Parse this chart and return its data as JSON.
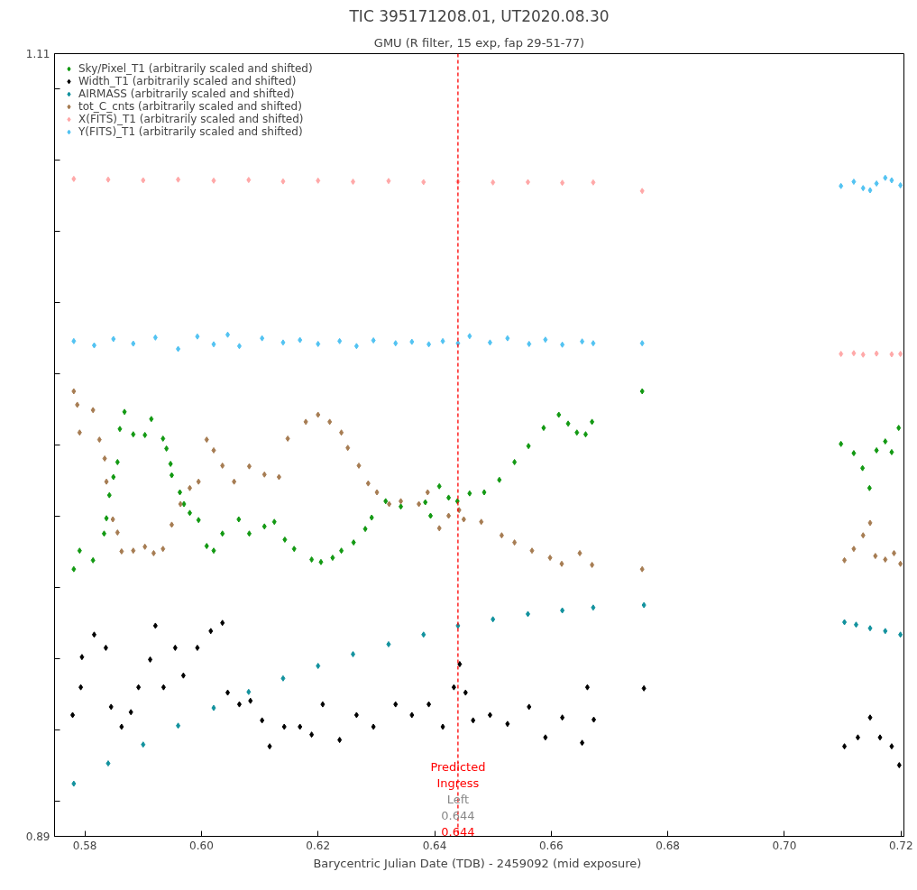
{
  "chart_data": {
    "type": "scatter",
    "title": "TIC 395171208.01, UT2020.08.30",
    "subtitle": "GMU (R filter, 15 exp, fap 29-51-77)",
    "xlabel": "Barycentric Julian Date (TDB) - 2459092 (mid  exposure)",
    "xlim": [
      0.5748,
      0.7205
    ],
    "ylim": [
      0.89,
      1.11
    ],
    "xticks": [
      {
        "value": 0.58,
        "label": "0.58"
      },
      {
        "value": 0.6,
        "label": "0.60"
      },
      {
        "value": 0.62,
        "label": "0.62"
      },
      {
        "value": 0.64,
        "label": "0.64"
      },
      {
        "value": 0.66,
        "label": "0.66"
      },
      {
        "value": 0.68,
        "label": "0.68"
      },
      {
        "value": 0.7,
        "label": "0.70"
      },
      {
        "value": 0.72,
        "label": "0.72"
      }
    ],
    "yticks": [
      0.89,
      {
        "value": 0.9,
        "label": null
      },
      {
        "value": 0.92,
        "label": null
      },
      {
        "value": 0.94,
        "label": null
      },
      {
        "value": 0.96,
        "label": null
      },
      {
        "value": 0.98,
        "label": null
      },
      {
        "value": 1.0,
        "label": null
      },
      {
        "value": 1.02,
        "label": null
      },
      {
        "value": 1.04,
        "label": null
      },
      {
        "value": 1.06,
        "label": null
      },
      {
        "value": 1.08,
        "label": null
      },
      {
        "value": 1.1,
        "label": null
      },
      1.11
    ],
    "grid": false,
    "legend": "top left",
    "marker": "diamond",
    "series": [
      {
        "name": "Sky/Pixel_T1 (arbitrarily scaled and shifted)",
        "color": "#129912",
        "x": [
          0.5781,
          0.5791,
          0.5814,
          0.5833,
          0.5837,
          0.5842,
          0.5849,
          0.5856,
          0.586,
          0.5868,
          0.5883,
          0.5903,
          0.5914,
          0.5934,
          0.594,
          0.5947,
          0.5949,
          0.5963,
          0.597,
          0.598,
          0.5995,
          0.6009,
          0.6021,
          0.6036,
          0.6064,
          0.6082,
          0.6108,
          0.6125,
          0.6143,
          0.6159,
          0.6189,
          0.6205,
          0.6225,
          0.624,
          0.6261,
          0.6281,
          0.6292,
          0.6316,
          0.6342,
          0.6384,
          0.6393,
          0.6408,
          0.6424,
          0.6439,
          0.646,
          0.6485,
          0.6511,
          0.6537,
          0.6561,
          0.6587,
          0.6613,
          0.6629,
          0.6644,
          0.6659,
          0.667,
          0.6756,
          0.7097,
          0.7119,
          0.7134,
          0.7146,
          0.7158,
          0.7173,
          0.7184,
          0.7196
        ],
        "values": [
          0.9651,
          0.9703,
          0.9676,
          0.9751,
          0.9794,
          0.9859,
          0.991,
          0.9952,
          1.0045,
          1.0093,
          1.003,
          1.0028,
          1.0073,
          1.0018,
          0.999,
          0.9947,
          0.9915,
          0.9867,
          0.9834,
          0.9809,
          0.9789,
          0.9716,
          0.9703,
          0.9751,
          0.9791,
          0.9751,
          0.9771,
          0.9784,
          0.9734,
          0.9708,
          0.9678,
          0.9671,
          0.9683,
          0.9703,
          0.9726,
          0.9764,
          0.9796,
          0.9842,
          0.9827,
          0.9839,
          0.9801,
          0.9884,
          0.9852,
          0.9842,
          0.9864,
          0.9867,
          0.9902,
          0.9952,
          0.9997,
          1.0048,
          1.0085,
          1.006,
          1.0035,
          1.003,
          1.0065,
          1.0151,
          1.0003,
          0.9977,
          0.9935,
          0.9879,
          0.9985,
          1.001,
          0.998,
          1.0048
        ]
      },
      {
        "name": "Width_T1 (arbitrarily scaled and shifted)",
        "color": "#000000",
        "x": [
          0.5779,
          0.5793,
          0.5795,
          0.5816,
          0.5836,
          0.5845,
          0.5863,
          0.5879,
          0.5892,
          0.5912,
          0.5921,
          0.5935,
          0.5955,
          0.5969,
          0.5993,
          0.6016,
          0.6036,
          0.6045,
          0.6065,
          0.6084,
          0.6104,
          0.6117,
          0.6142,
          0.6169,
          0.6189,
          0.6208,
          0.6237,
          0.6266,
          0.6295,
          0.6333,
          0.6361,
          0.639,
          0.6414,
          0.6433,
          0.6443,
          0.6453,
          0.6466,
          0.6495,
          0.6525,
          0.6562,
          0.659,
          0.6619,
          0.6653,
          0.6662,
          0.6673,
          0.6759,
          0.7103,
          0.7126,
          0.7147,
          0.7164,
          0.7184,
          0.7197
        ],
        "values": [
          0.9241,
          0.9319,
          0.9404,
          0.9467,
          0.943,
          0.9264,
          0.9208,
          0.9249,
          0.9319,
          0.9397,
          0.9492,
          0.9319,
          0.943,
          0.9352,
          0.943,
          0.9477,
          0.95,
          0.9304,
          0.9271,
          0.9281,
          0.9226,
          0.9153,
          0.9208,
          0.9208,
          0.9186,
          0.9271,
          0.9171,
          0.9241,
          0.9208,
          0.9271,
          0.9241,
          0.9271,
          0.9208,
          0.9319,
          0.9384,
          0.9304,
          0.9226,
          0.9241,
          0.9216,
          0.9264,
          0.9178,
          0.9234,
          0.9163,
          0.9319,
          0.9228,
          0.9316,
          0.9153,
          0.9178,
          0.9234,
          0.9178,
          0.9153,
          0.91
        ]
      },
      {
        "name": "AIRMASS (arbitrarily scaled and shifted)",
        "color": "#12929e",
        "x": [
          0.5781,
          0.584,
          0.59,
          0.596,
          0.6021,
          0.6081,
          0.614,
          0.62,
          0.626,
          0.6321,
          0.6381,
          0.644,
          0.65,
          0.656,
          0.6619,
          0.6672,
          0.6759,
          0.7103,
          0.7123,
          0.7147,
          0.7173,
          0.7199
        ],
        "values": [
          0.9048,
          0.9105,
          0.9158,
          0.9211,
          0.9261,
          0.9306,
          0.9344,
          0.9379,
          0.9412,
          0.944,
          0.9467,
          0.9492,
          0.951,
          0.9525,
          0.9535,
          0.9543,
          0.955,
          0.9502,
          0.9495,
          0.9485,
          0.9477,
          0.9467
        ]
      },
      {
        "name": "tot_C_cnts (arbitrarily scaled and shifted)",
        "color": "#a67c52",
        "x": [
          0.5781,
          0.5787,
          0.5791,
          0.5814,
          0.5825,
          0.5834,
          0.5837,
          0.5848,
          0.5856,
          0.5863,
          0.5883,
          0.5903,
          0.5918,
          0.5934,
          0.5949,
          0.5964,
          0.598,
          0.5995,
          0.6009,
          0.6021,
          0.6036,
          0.6056,
          0.6082,
          0.6108,
          0.6133,
          0.6148,
          0.6179,
          0.62,
          0.622,
          0.624,
          0.6251,
          0.627,
          0.6286,
          0.6301,
          0.6322,
          0.6342,
          0.6373,
          0.6388,
          0.6408,
          0.6424,
          0.6442,
          0.645,
          0.648,
          0.6515,
          0.6537,
          0.6567,
          0.6598,
          0.6618,
          0.6649,
          0.667,
          0.6756,
          0.7103,
          0.7119,
          0.7135,
          0.7147,
          0.7156,
          0.7173,
          0.7188,
          0.7199
        ],
        "values": [
          1.0151,
          1.0113,
          1.0035,
          1.0098,
          1.0015,
          0.9962,
          0.9897,
          0.9791,
          0.9754,
          0.9701,
          0.9703,
          0.9714,
          0.9696,
          0.9708,
          0.9776,
          0.9834,
          0.9879,
          0.9897,
          1.0015,
          0.9985,
          0.9942,
          0.9897,
          0.994,
          0.9917,
          0.991,
          1.0018,
          1.0065,
          1.0085,
          1.0065,
          1.0035,
          0.9992,
          0.9942,
          0.9892,
          0.9867,
          0.9834,
          0.9842,
          0.9834,
          0.9867,
          0.9766,
          0.9801,
          0.9817,
          0.9791,
          0.9784,
          0.9746,
          0.9726,
          0.9703,
          0.9683,
          0.9666,
          0.9696,
          0.9663,
          0.9651,
          0.9676,
          0.9708,
          0.9746,
          0.9781,
          0.9688,
          0.9678,
          0.9696,
          0.9666
        ]
      },
      {
        "name": "X(FITS)_T1 (arbitrarily scaled and shifted)",
        "color": "#ffa8a8",
        "x": [
          0.5781,
          0.584,
          0.59,
          0.596,
          0.6021,
          0.6081,
          0.614,
          0.62,
          0.626,
          0.6321,
          0.6381,
          0.644,
          0.65,
          0.656,
          0.6619,
          0.6672,
          0.6756,
          0.7097,
          0.7119,
          0.7135,
          0.7158,
          0.7184,
          0.7199
        ],
        "values": [
          1.0748,
          1.0746,
          1.0744,
          1.0746,
          1.0743,
          1.0745,
          1.0741,
          1.0743,
          1.074,
          1.0742,
          1.0739,
          1.074,
          1.0738,
          1.0739,
          1.0737,
          1.0738,
          1.0714,
          1.0256,
          1.0258,
          1.0254,
          1.0257,
          1.0255,
          1.0256
        ]
      },
      {
        "name": "Y(FITS)_T1 (arbitrarily scaled and shifted)",
        "color": "#52c3f2",
        "x": [
          0.5781,
          0.5816,
          0.5849,
          0.5883,
          0.5921,
          0.596,
          0.5993,
          0.6021,
          0.6045,
          0.6065,
          0.6104,
          0.614,
          0.6169,
          0.62,
          0.6237,
          0.6266,
          0.6295,
          0.6333,
          0.6361,
          0.639,
          0.6414,
          0.644,
          0.646,
          0.6495,
          0.6525,
          0.6562,
          0.659,
          0.6619,
          0.6653,
          0.6672,
          0.6756,
          0.7097,
          0.7119,
          0.7135,
          0.7147,
          0.7158,
          0.7173,
          0.7184,
          0.7199
        ],
        "values": [
          1.0292,
          1.028,
          1.0298,
          1.0285,
          1.0302,
          1.027,
          1.0305,
          1.0283,
          1.031,
          1.0278,
          1.03,
          1.0288,
          1.0295,
          1.0284,
          1.0292,
          1.0278,
          1.0294,
          1.0286,
          1.029,
          1.0283,
          1.0292,
          1.0286,
          1.0306,
          1.0288,
          1.03,
          1.0284,
          1.0296,
          1.0282,
          1.0291,
          1.0286,
          1.0286,
          1.0728,
          1.074,
          1.0722,
          1.0716,
          1.0735,
          1.0751,
          1.0744,
          1.073
        ]
      }
    ],
    "ref_lines": [
      {
        "axis": "x",
        "value": 0.644,
        "label": "Predicted Ingress",
        "color": "#ff0000",
        "line_style": "dashed"
      }
    ],
    "annotations": [
      {
        "text": "Left 0.644",
        "x": 0.644,
        "y": 0.894
      },
      {
        "text": "0.644",
        "x": 0.644
      }
    ]
  }
}
